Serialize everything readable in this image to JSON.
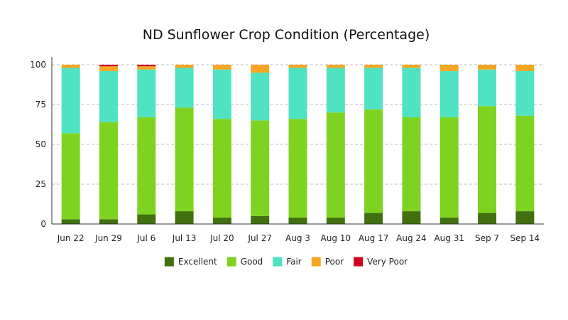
{
  "chart_data": {
    "type": "bar",
    "stacked": true,
    "title": "ND Sunflower Crop Condition (Percentage)",
    "xlabel": "",
    "ylabel": "",
    "ylim": [
      0,
      100
    ],
    "yticks": [
      0,
      25,
      50,
      75,
      100
    ],
    "grid": "horizontal dashed",
    "legend": "bottom",
    "categories": [
      "Jun 22",
      "Jun 29",
      "Jul 6",
      "Jul 13",
      "Jul 20",
      "Jul 27",
      "Aug 3",
      "Aug 10",
      "Aug 17",
      "Aug 24",
      "Aug 31",
      "Sep 7",
      "Sep 14"
    ],
    "series": [
      {
        "name": "Excellent",
        "color": "#41700f",
        "values": [
          3,
          3,
          6,
          8,
          4,
          5,
          4,
          4,
          7,
          8,
          4,
          7,
          8
        ]
      },
      {
        "name": "Good",
        "color": "#7ed321",
        "values": [
          54,
          61,
          61,
          65,
          62,
          60,
          62,
          66,
          65,
          59,
          63,
          67,
          60
        ]
      },
      {
        "name": "Fair",
        "color": "#50e3c2",
        "values": [
          41,
          32,
          30,
          25,
          31,
          30,
          32,
          28,
          26,
          31,
          29,
          23,
          28
        ]
      },
      {
        "name": "Poor",
        "color": "#f5a623",
        "values": [
          2,
          3,
          2,
          2,
          3,
          5,
          2,
          2,
          2,
          2,
          4,
          3,
          4
        ]
      },
      {
        "name": "Very Poor",
        "color": "#d0021b",
        "values": [
          0,
          1,
          1,
          0,
          0,
          0,
          0,
          0,
          0,
          0,
          0,
          0,
          0
        ]
      }
    ]
  }
}
